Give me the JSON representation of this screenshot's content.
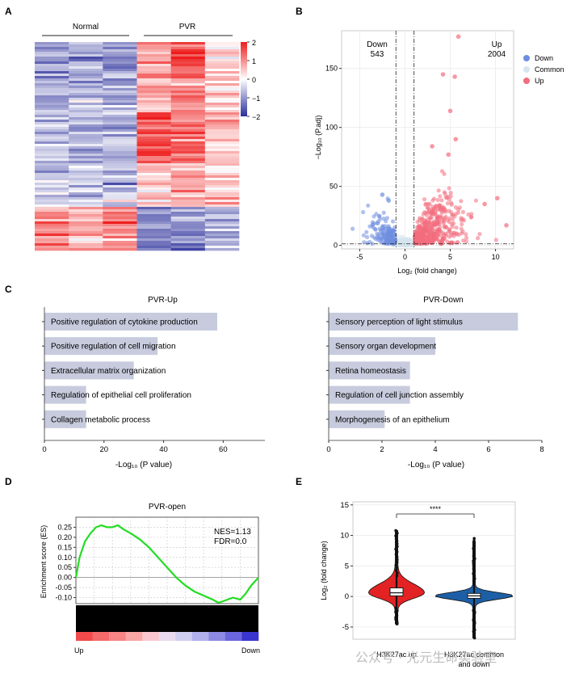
{
  "panels": {
    "A": {
      "label": "A",
      "group_normal": "Normal",
      "group_pvr": "PVR",
      "colorbar_ticks": [
        "2",
        "1",
        "0",
        "−1",
        "−2"
      ],
      "colors": {
        "high": "#ee1c1c",
        "mid": "#ffffff",
        "low": "#2b2f9a"
      }
    },
    "B": {
      "label": "B",
      "down_label": "Down",
      "down_count": "543",
      "up_label": "Up",
      "up_count": "2004",
      "xlabel": "Log₂ (fold change)",
      "ylabel": "−Log₁₀ (P.adj)",
      "legend": [
        {
          "name": "Down",
          "color": "#6f8ee0"
        },
        {
          "name": "Common",
          "color": "#d5e6ee"
        },
        {
          "name": "Up",
          "color": "#f26d7d"
        }
      ]
    },
    "C": {
      "label": "C",
      "xlabel": "-Log₁₀ (P value)"
    },
    "D": {
      "label": "D",
      "title": "PVR-open",
      "ylabel": "Enrichment score (ES)",
      "nes": "NES=1.13",
      "fdr": "FDR=0.0",
      "left_label": "Up",
      "right_label": "Down"
    },
    "E": {
      "label": "E",
      "ylabel": "Log₂ (fold change)",
      "significance": "****",
      "group1": "H3K27ac up",
      "group2_line1": "H3K27ac common",
      "group2_line2": "and down",
      "colors": {
        "up": "#e32224",
        "common": "#1d5fa6"
      }
    }
  },
  "watermark": "公众号 · 光元生命实验室",
  "chart_data": [
    {
      "id": "A",
      "type": "heatmap",
      "title": "",
      "columns": [
        "Normal",
        "Normal",
        "Normal",
        "PVR",
        "PVR",
        "PVR"
      ],
      "color_range": [
        -2,
        2
      ],
      "color_ticks": [
        2,
        1,
        0,
        -1,
        -2
      ]
    },
    {
      "id": "B",
      "type": "scatter",
      "title": "",
      "xlabel": "Log2 (fold change)",
      "ylabel": "-Log10 (P.adj)",
      "xlim": [
        -7,
        12
      ],
      "ylim": [
        -3,
        182
      ],
      "xticks": [
        -5,
        0,
        5,
        10
      ],
      "yticks": [
        0,
        50,
        100,
        150
      ],
      "fc_threshold": [
        -1,
        1
      ],
      "padj_threshold": 1.3,
      "counts": {
        "Down": 543,
        "Up": 2004
      },
      "highlight_points": [
        {
          "x": 5.9,
          "y": 177,
          "group": "Up"
        },
        {
          "x": 4.2,
          "y": 145,
          "group": "Up"
        },
        {
          "x": 5.5,
          "y": 143,
          "group": "Up"
        },
        {
          "x": 5.0,
          "y": 114,
          "group": "Up"
        },
        {
          "x": 3.0,
          "y": 84,
          "group": "Up"
        },
        {
          "x": 5.6,
          "y": 90,
          "group": "Up"
        },
        {
          "x": 4.8,
          "y": 77,
          "group": "Up"
        },
        {
          "x": 8.8,
          "y": 35,
          "group": "Up"
        },
        {
          "x": 10.2,
          "y": 40,
          "group": "Up"
        },
        {
          "x": 11.2,
          "y": 17,
          "group": "Up"
        },
        {
          "x": -2.5,
          "y": 43,
          "group": "Down"
        },
        {
          "x": -1.8,
          "y": 38,
          "group": "Down"
        }
      ]
    },
    {
      "id": "C-up",
      "type": "bar",
      "title": "PVR-Up",
      "categories": [
        "Positive regulation of cytokine production",
        "Positive regulation of cell migration",
        "Extracellular matrix organization",
        "Regulation of epithelial cell proliferation",
        "Collagen metabolic process"
      ],
      "values": [
        58,
        38,
        30,
        14,
        14
      ],
      "xlabel": "-Log10 (P value)",
      "xlim": [
        0,
        74
      ],
      "xticks": [
        0,
        20,
        40,
        60
      ]
    },
    {
      "id": "C-down",
      "type": "bar",
      "title": "PVR-Down",
      "categories": [
        "Sensory perception of light stimulus",
        "Sensory organ development",
        "Retina homeostasis",
        "Regulation of cell junction assembly",
        "Morphogenesis of an epithelium"
      ],
      "values": [
        7.1,
        4.0,
        3.05,
        3.05,
        2.1
      ],
      "xlabel": "-Log10 (P value)",
      "xlim": [
        0,
        8
      ],
      "xticks": [
        0,
        2,
        4,
        6,
        8
      ]
    },
    {
      "id": "D",
      "type": "line",
      "title": "PVR-open",
      "ylabel": "Enrichment score (ES)",
      "x": [
        0,
        0.02,
        0.05,
        0.08,
        0.11,
        0.14,
        0.17,
        0.2,
        0.23,
        0.26,
        0.3,
        0.35,
        0.4,
        0.45,
        0.5,
        0.55,
        0.6,
        0.65,
        0.7,
        0.75,
        0.78,
        0.8,
        0.83,
        0.86,
        0.9,
        0.93,
        0.96,
        1.0
      ],
      "y": [
        0.0,
        0.1,
        0.18,
        0.22,
        0.25,
        0.26,
        0.25,
        0.25,
        0.26,
        0.24,
        0.22,
        0.19,
        0.15,
        0.1,
        0.05,
        0.0,
        -0.04,
        -0.07,
        -0.09,
        -0.11,
        -0.125,
        -0.12,
        -0.11,
        -0.1,
        -0.11,
        -0.08,
        -0.04,
        0.0
      ],
      "ylim": [
        -0.13,
        0.3
      ],
      "yticks": [
        -0.1,
        -0.05,
        0.0,
        0.05,
        0.1,
        0.15,
        0.2,
        0.25
      ],
      "ytick_labels": [
        "-0.10",
        "-0.05",
        "0.00",
        "0.05",
        "0.10",
        "0.15",
        "0.20",
        "0.25"
      ],
      "annotations": [
        "NES=1.13",
        "FDR=0.0"
      ]
    },
    {
      "id": "E",
      "type": "violin",
      "title": "",
      "ylabel": "Log2 (fold change)",
      "ylim": [
        -7,
        15.5
      ],
      "yticks": [
        -5,
        0,
        5,
        10,
        15
      ],
      "groups": [
        {
          "name": "H3K27ac up",
          "median": 0.6,
          "q1": 0.1,
          "q3": 1.4,
          "min": -4.5,
          "max": 10.8
        },
        {
          "name": "H3K27ac common and down",
          "median": 0.1,
          "q1": -0.3,
          "q3": 0.5,
          "min": -6.8,
          "max": 9.5
        }
      ],
      "significance": "****"
    }
  ]
}
